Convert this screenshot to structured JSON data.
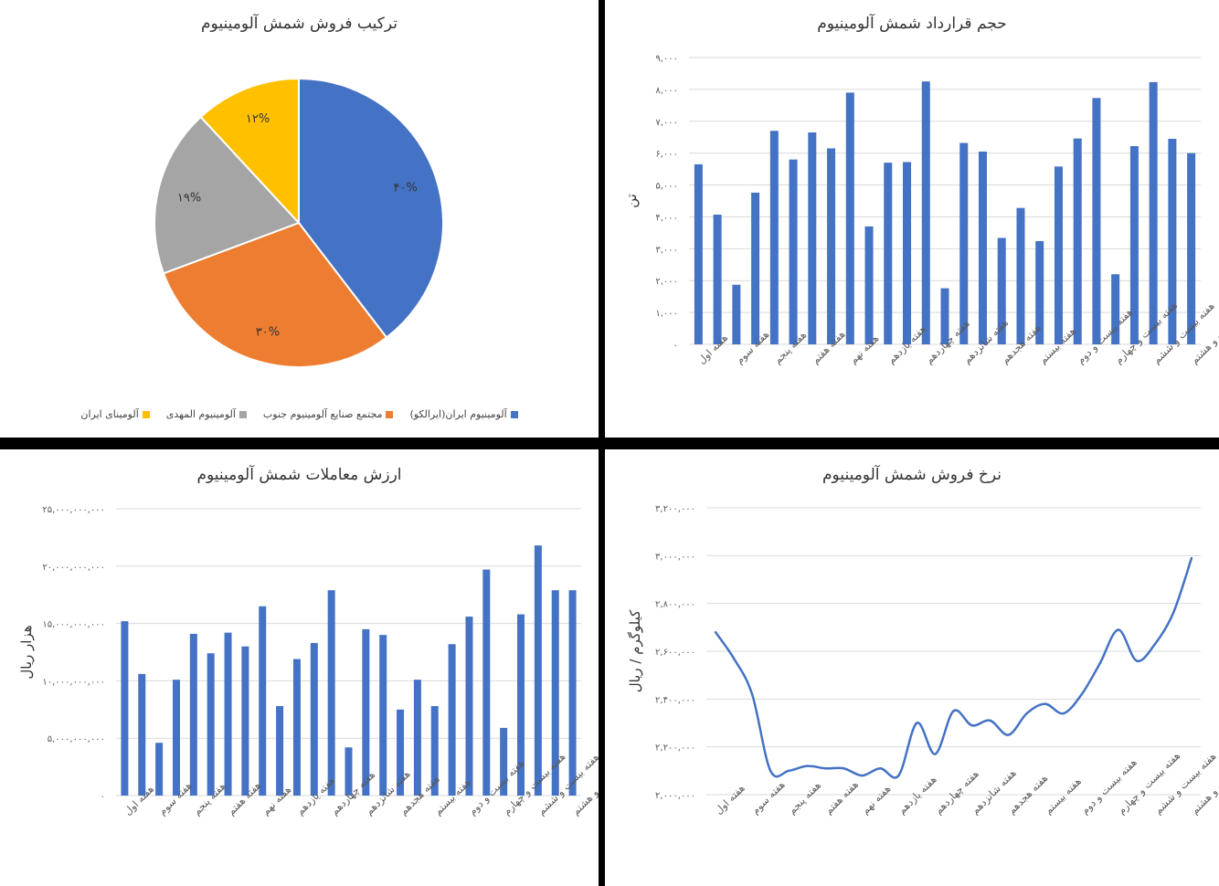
{
  "colors": {
    "bar": "#4472C4",
    "grid": "#D9D9D9",
    "axis_text": "#595959"
  },
  "chart_data": [
    {
      "id": "pie",
      "type": "pie",
      "title": "ترکیب فروش شمش آلومینیوم",
      "legend_position": "bottom",
      "slices": [
        {
          "name": "آلومینیوم ایران(ایرالکو)",
          "value": 40,
          "label": "۴۰%",
          "color": "#4472C4"
        },
        {
          "name": "مجتمع صنایع آلومینیوم جنوب",
          "value": 30,
          "label": "۳۰%",
          "color": "#ED7D31"
        },
        {
          "name": "آلومینیوم المهدی",
          "value": 19,
          "label": "۱۹%",
          "color": "#A5A5A5"
        },
        {
          "name": "آلومینای ایران",
          "value": 12,
          "label": "۱۲%",
          "color": "#FFC000"
        }
      ]
    },
    {
      "id": "volume",
      "type": "bar",
      "title": "حجم قرارداد شمش آلومینیوم",
      "ylabel": "تن",
      "ylim": [
        0,
        9000
      ],
      "grid": true,
      "y_ticks": [
        0,
        1000,
        2000,
        3000,
        4000,
        5000,
        6000,
        7000,
        8000,
        9000
      ],
      "y_tick_labels": [
        "۰",
        "۱,۰۰۰",
        "۲,۰۰۰",
        "۳,۰۰۰",
        "۴,۰۰۰",
        "۵,۰۰۰",
        "۶,۰۰۰",
        "۷,۰۰۰",
        "۸,۰۰۰",
        "۹,۰۰۰"
      ],
      "x_tick_labels": [
        "هفته اول",
        "هفته سوم",
        "هفته پنجم",
        "هفته هفتم",
        "هفته نهم",
        "هفته یازدهم",
        "هفته چهاردهم",
        "هفته شانزدهم",
        "هفته هجدهم",
        "هفته بیستم",
        "هفته بیست و دوم",
        "هفته بیست و چهارم",
        "هفته بیست و ششم",
        "هفته بیست و هشتم"
      ],
      "values": [
        5650,
        4070,
        1870,
        4760,
        6700,
        5800,
        6650,
        6150,
        7900,
        3700,
        5700,
        5720,
        8250,
        1760,
        6320,
        6050,
        3340,
        4280,
        3240,
        5580,
        6460,
        7730,
        2200,
        6220,
        8230,
        6450,
        6000
      ]
    },
    {
      "id": "value",
      "type": "bar",
      "title": "ارزش معاملات شمش آلومینیوم",
      "ylabel": "هزار ریال",
      "ylim": [
        0,
        25000000000
      ],
      "grid": true,
      "y_ticks": [
        0,
        5000000000,
        10000000000,
        15000000000,
        20000000000,
        25000000000
      ],
      "y_tick_labels": [
        "۰",
        "۵,۰۰۰,۰۰۰,۰۰۰",
        "۱۰,۰۰۰,۰۰۰,۰۰۰",
        "۱۵,۰۰۰,۰۰۰,۰۰۰",
        "۲۰,۰۰۰,۰۰۰,۰۰۰",
        "۲۵,۰۰۰,۰۰۰,۰۰۰"
      ],
      "x_tick_labels": [
        "هفته اول",
        "هفته سوم",
        "هفته پنجم",
        "هفته هفتم",
        "هفته نهم",
        "هفته یازدهم",
        "هفته چهاردهم",
        "هفته شانزدهم",
        "هفته هجدهم",
        "هفته بیستم",
        "هفته بیست و دوم",
        "هفته بیست و چهارم",
        "هفته بیست و ششم",
        "هفته بیست و هشتم"
      ],
      "values": [
        15200000000,
        10600000000,
        4600000000,
        10100000000,
        14100000000,
        12400000000,
        14200000000,
        13000000000,
        16500000000,
        7800000000,
        11900000000,
        13300000000,
        17900000000,
        4200000000,
        14500000000,
        14000000000,
        7500000000,
        10100000000,
        7800000000,
        13200000000,
        15600000000,
        19700000000,
        5900000000,
        15800000000,
        21800000000,
        17900000000,
        17900000000
      ]
    },
    {
      "id": "price",
      "type": "line",
      "title": "نرخ فروش شمش آلومینیوم",
      "ylabel": "کیلوگرم / ریال",
      "ylim": [
        2000000,
        3200000
      ],
      "grid": true,
      "y_ticks": [
        2000000,
        2200000,
        2400000,
        2600000,
        2800000,
        3000000,
        3200000
      ],
      "y_tick_labels": [
        "۲,۰۰۰,۰۰۰",
        "۲,۲۰۰,۰۰۰",
        "۲,۴۰۰,۰۰۰",
        "۲,۶۰۰,۰۰۰",
        "۲,۸۰۰,۰۰۰",
        "۳,۰۰۰,۰۰۰",
        "۳,۲۰۰,۰۰۰"
      ],
      "x_tick_labels": [
        "هفته اول",
        "هفته سوم",
        "هفته پنجم",
        "هفته هفتم",
        "هفته نهم",
        "هفته یازدهم",
        "هفته چهاردهم",
        "هفته شانزدهم",
        "هفته هجدهم",
        "هفته بیستم",
        "هفته بیست و دوم",
        "هفته بیست و چهارم",
        "هفته بیست و ششم",
        "هفته بیست و هشتم"
      ],
      "values": [
        2680000,
        2570000,
        2420000,
        2100000,
        2100000,
        2120000,
        2110000,
        2110000,
        2080000,
        2110000,
        2080000,
        2300000,
        2170000,
        2350000,
        2290000,
        2310000,
        2250000,
        2340000,
        2380000,
        2340000,
        2420000,
        2550000,
        2690000,
        2560000,
        2630000,
        2760000,
        2990000
      ]
    }
  ]
}
